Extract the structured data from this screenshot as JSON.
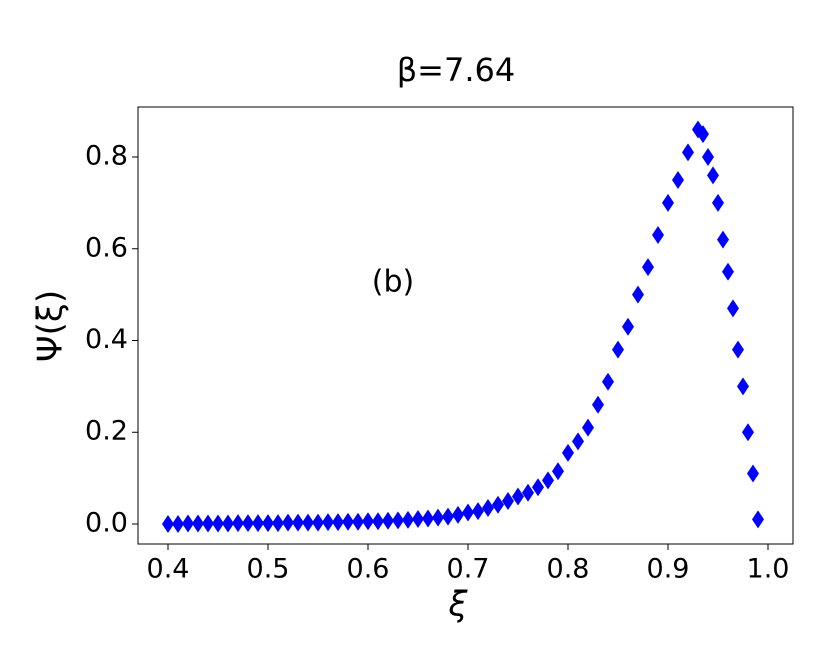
{
  "chart_data": {
    "type": "scatter",
    "title": "β=7.64",
    "xlabel": "ξ",
    "ylabel": "Ψ(ξ)",
    "annotation": "(b)",
    "marker": "diamond",
    "color": "#0000ff",
    "x": [
      0.4,
      0.41,
      0.42,
      0.43,
      0.44,
      0.45,
      0.46,
      0.47,
      0.48,
      0.49,
      0.5,
      0.51,
      0.52,
      0.53,
      0.54,
      0.55,
      0.56,
      0.57,
      0.58,
      0.59,
      0.6,
      0.61,
      0.62,
      0.63,
      0.64,
      0.65,
      0.66,
      0.67,
      0.68,
      0.69,
      0.7,
      0.71,
      0.72,
      0.73,
      0.74,
      0.75,
      0.76,
      0.77,
      0.78,
      0.79,
      0.8,
      0.81,
      0.82,
      0.83,
      0.84,
      0.85,
      0.86,
      0.87,
      0.88,
      0.89,
      0.9,
      0.91,
      0.92,
      0.93,
      0.935,
      0.94,
      0.945,
      0.95,
      0.955,
      0.96,
      0.965,
      0.97,
      0.975,
      0.98,
      0.985,
      0.99
    ],
    "values": [
      0.0,
      0.0,
      0.001,
      0.001,
      0.001,
      0.001,
      0.001,
      0.002,
      0.002,
      0.002,
      0.002,
      0.002,
      0.003,
      0.003,
      0.003,
      0.003,
      0.004,
      0.004,
      0.005,
      0.005,
      0.006,
      0.006,
      0.007,
      0.008,
      0.009,
      0.011,
      0.012,
      0.014,
      0.016,
      0.02,
      0.025,
      0.028,
      0.035,
      0.042,
      0.05,
      0.06,
      0.068,
      0.08,
      0.095,
      0.115,
      0.155,
      0.18,
      0.21,
      0.26,
      0.31,
      0.38,
      0.43,
      0.5,
      0.56,
      0.63,
      0.7,
      0.75,
      0.81,
      0.86,
      0.85,
      0.8,
      0.76,
      0.7,
      0.62,
      0.55,
      0.47,
      0.38,
      0.3,
      0.2,
      0.11,
      0.01
    ],
    "xlim": [
      0.37,
      1.025
    ],
    "ylim": [
      -0.0436,
      0.909
    ],
    "xticks": [
      0.4,
      0.5,
      0.6,
      0.7,
      0.8,
      0.9,
      {
        "value": 1,
        "label": "1.0"
      }
    ],
    "yticks": [
      {
        "value": 0,
        "label": "0.0"
      },
      0.2,
      0.4,
      0.6,
      0.8
    ]
  }
}
